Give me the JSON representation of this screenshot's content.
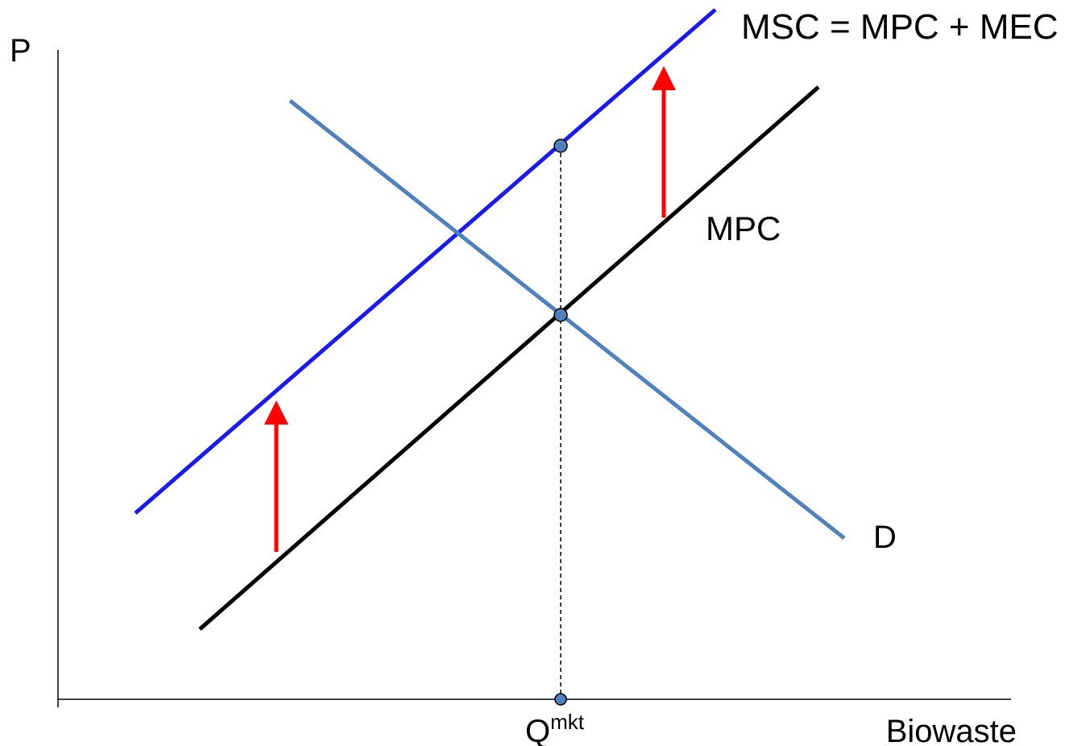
{
  "axes": {
    "y_label": "P",
    "x_label": "Biowaste",
    "axis_color": "#000000"
  },
  "curves": {
    "msc": {
      "label": "MSC = MPC + MEC",
      "color": "#1a1aee"
    },
    "mpc": {
      "label": "MPC",
      "color": "#000000"
    },
    "demand": {
      "label": "D",
      "color": "#4f81bd"
    }
  },
  "shift_arrows": {
    "color": "#ff0000",
    "count": 2
  },
  "points": {
    "marker_color": "#4f81bd",
    "marker_outline": "#000000"
  },
  "market_quantity": {
    "label_main": "Q",
    "label_sup": "mkt"
  }
}
